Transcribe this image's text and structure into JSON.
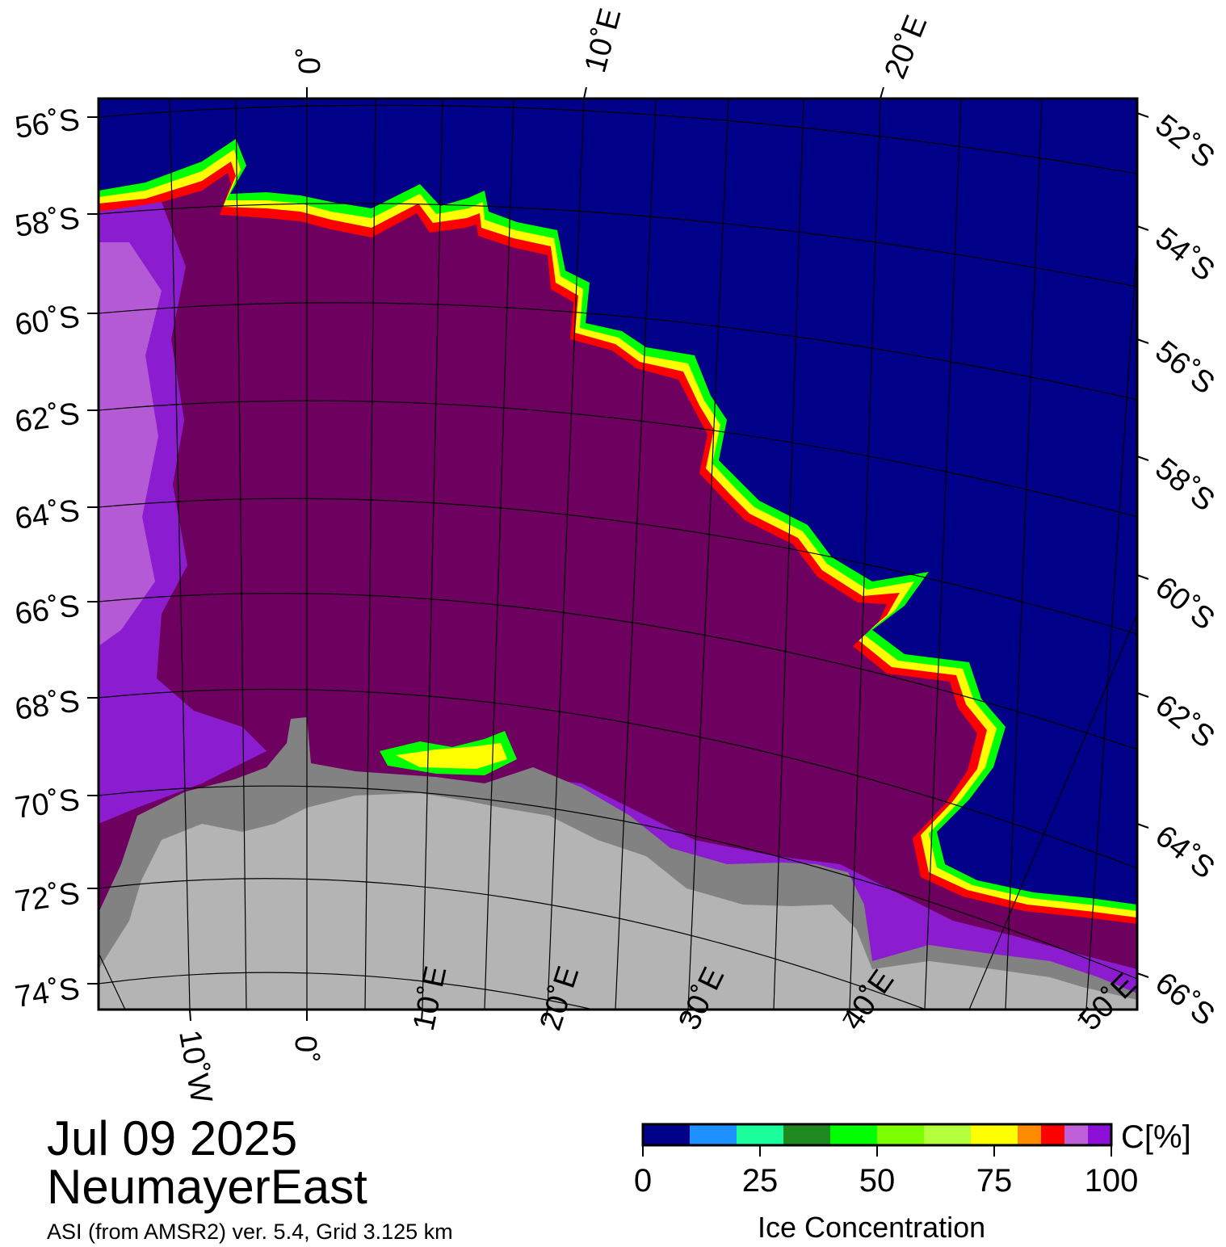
{
  "colors": {
    "open_water": "#000088",
    "ice_high": "#6e0060",
    "ice_purple": "#8c1cd0",
    "ice_pale_purple": "#b45ad4",
    "edge_red": "#ff0000",
    "edge_yellow": "#ffff00",
    "edge_green": "#00ff00",
    "land": "#b4b4b4",
    "ice_shelf": "#828282"
  },
  "map": {
    "type": "polar-stereographic sea-ice concentration map",
    "meridian_labels_top": [
      "0˚",
      "10˚E",
      "20˚E"
    ],
    "meridian_labels_bottom": [
      "10˚W",
      "0˚",
      "10˚E",
      "20˚E",
      "30˚E",
      "40˚E",
      "50˚E"
    ],
    "parallel_labels_left": [
      "56˚S",
      "58˚S",
      "60˚S",
      "62˚S",
      "64˚S",
      "66˚S",
      "68˚S",
      "70˚S",
      "72˚S",
      "74˚S"
    ],
    "parallel_labels_right": [
      "52˚S",
      "54˚S",
      "56˚S",
      "58˚S",
      "60˚S",
      "62˚S",
      "64˚S",
      "66˚S"
    ]
  },
  "info": {
    "date": "Jul 09 2025",
    "region": "NeumayerEast",
    "source": "ASI (from AMSR2) ver. 5.4,  Grid 3.125 km"
  },
  "colorbar": {
    "unit_label": "C[%]",
    "title": "Ice Concentration",
    "ticks": [
      "0",
      "25",
      "50",
      "75",
      "100"
    ],
    "bin_colors": [
      "#000088",
      "#1e90ff",
      "#1aff9c",
      "#1f8a1f",
      "#00ff00",
      "#7cff00",
      "#b4ff3c",
      "#ffff00",
      "#ff8c00",
      "#ff0000",
      "#c060d8",
      "#8c10d8"
    ],
    "range": [
      0,
      100
    ]
  }
}
